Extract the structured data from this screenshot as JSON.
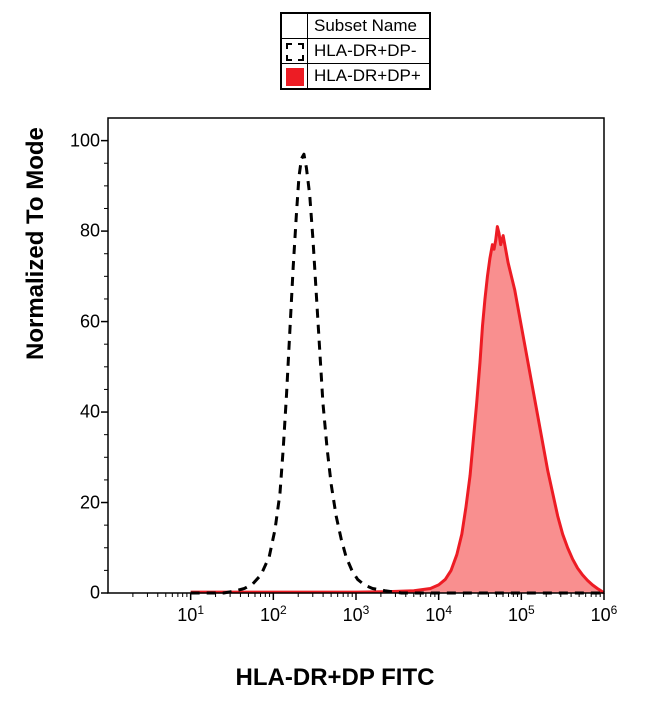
{
  "chart": {
    "type": "flow-cytometry-histogram",
    "background_color": "#ffffff",
    "plot_border_color": "#000000",
    "plot_border_width": 1.5,
    "xlabel": "HLA-DR+DP FITC",
    "ylabel": "Normalized To Mode",
    "label_fontsize": 24,
    "label_fontweight": "bold",
    "tick_fontsize": 18,
    "x_scale": "log",
    "x_exp_min": 0,
    "x_exp_max": 6,
    "x_ticks_exp": [
      1,
      2,
      3,
      4,
      5,
      6
    ],
    "y_scale": "linear",
    "ylim": [
      0,
      105
    ],
    "y_ticks": [
      0,
      20,
      40,
      60,
      80,
      100
    ],
    "minor_ticks": true,
    "legend": {
      "header_swatch": "",
      "header_label": "Subset Name",
      "rows": [
        {
          "name": "HLA-DR+DP-",
          "fill": "none",
          "stroke": "#000000",
          "dash": true
        },
        {
          "name": "HLA-DR+DP+",
          "fill": "#ed1c24",
          "stroke": "#ed1c24",
          "dash": false
        }
      ]
    },
    "series": [
      {
        "name": "HLA-DR+DP-",
        "stroke": "#000000",
        "stroke_width": 3,
        "dash": "9 7",
        "fill": "none",
        "fill_opacity": 0,
        "points_exp_y": [
          [
            1.0,
            0.0
          ],
          [
            1.2,
            0.0
          ],
          [
            1.4,
            0.0
          ],
          [
            1.55,
            0.5
          ],
          [
            1.65,
            1.0
          ],
          [
            1.75,
            2.0
          ],
          [
            1.85,
            4.0
          ],
          [
            1.95,
            8.0
          ],
          [
            2.02,
            14.0
          ],
          [
            2.08,
            22.0
          ],
          [
            2.12,
            32.0
          ],
          [
            2.16,
            44.0
          ],
          [
            2.2,
            58.0
          ],
          [
            2.24,
            72.0
          ],
          [
            2.28,
            84.0
          ],
          [
            2.31,
            92.0
          ],
          [
            2.34,
            96.0
          ],
          [
            2.37,
            97.0
          ],
          [
            2.4,
            94.0
          ],
          [
            2.44,
            88.0
          ],
          [
            2.48,
            78.0
          ],
          [
            2.52,
            66.0
          ],
          [
            2.56,
            54.0
          ],
          [
            2.6,
            42.0
          ],
          [
            2.65,
            32.0
          ],
          [
            2.7,
            24.0
          ],
          [
            2.76,
            17.0
          ],
          [
            2.82,
            12.0
          ],
          [
            2.88,
            8.0
          ],
          [
            2.95,
            5.0
          ],
          [
            3.02,
            3.0
          ],
          [
            3.1,
            1.8
          ],
          [
            3.2,
            1.0
          ],
          [
            3.35,
            0.5
          ],
          [
            3.55,
            0.0
          ],
          [
            3.8,
            0.0
          ],
          [
            4.2,
            0.0
          ],
          [
            5.0,
            0.0
          ],
          [
            6.0,
            0.0
          ]
        ]
      },
      {
        "name": "HLA-DR+DP+",
        "stroke": "#ed1c24",
        "stroke_width": 3,
        "dash": "none",
        "fill": "#f98f8f",
        "fill_opacity": 1,
        "points_exp_y": [
          [
            1.0,
            0.2
          ],
          [
            1.5,
            0.2
          ],
          [
            2.0,
            0.2
          ],
          [
            2.5,
            0.2
          ],
          [
            3.0,
            0.2
          ],
          [
            3.4,
            0.3
          ],
          [
            3.7,
            0.5
          ],
          [
            3.9,
            1.0
          ],
          [
            4.0,
            1.8
          ],
          [
            4.08,
            3.0
          ],
          [
            4.15,
            5.0
          ],
          [
            4.22,
            8.5
          ],
          [
            4.28,
            13.0
          ],
          [
            4.33,
            19.0
          ],
          [
            4.38,
            26.0
          ],
          [
            4.42,
            34.0
          ],
          [
            4.46,
            42.0
          ],
          [
            4.5,
            51.0
          ],
          [
            4.53,
            59.0
          ],
          [
            4.56,
            65.0
          ],
          [
            4.59,
            70.0
          ],
          [
            4.62,
            74.0
          ],
          [
            4.65,
            77.0
          ],
          [
            4.67,
            76.0
          ],
          [
            4.69,
            78.0
          ],
          [
            4.71,
            81.0
          ],
          [
            4.73,
            79.5
          ],
          [
            4.75,
            77.0
          ],
          [
            4.78,
            79.0
          ],
          [
            4.81,
            76.0
          ],
          [
            4.84,
            73.0
          ],
          [
            4.88,
            70.0
          ],
          [
            4.92,
            67.0
          ],
          [
            4.96,
            63.0
          ],
          [
            5.0,
            59.0
          ],
          [
            5.05,
            54.0
          ],
          [
            5.1,
            49.0
          ],
          [
            5.15,
            44.0
          ],
          [
            5.2,
            39.0
          ],
          [
            5.26,
            33.0
          ],
          [
            5.32,
            27.0
          ],
          [
            5.38,
            22.0
          ],
          [
            5.44,
            17.0
          ],
          [
            5.5,
            13.0
          ],
          [
            5.56,
            10.0
          ],
          [
            5.62,
            7.5
          ],
          [
            5.68,
            5.5
          ],
          [
            5.74,
            4.0
          ],
          [
            5.8,
            2.8
          ],
          [
            5.86,
            1.8
          ],
          [
            5.92,
            1.0
          ],
          [
            5.97,
            0.4
          ],
          [
            6.0,
            0.0
          ]
        ]
      }
    ]
  }
}
